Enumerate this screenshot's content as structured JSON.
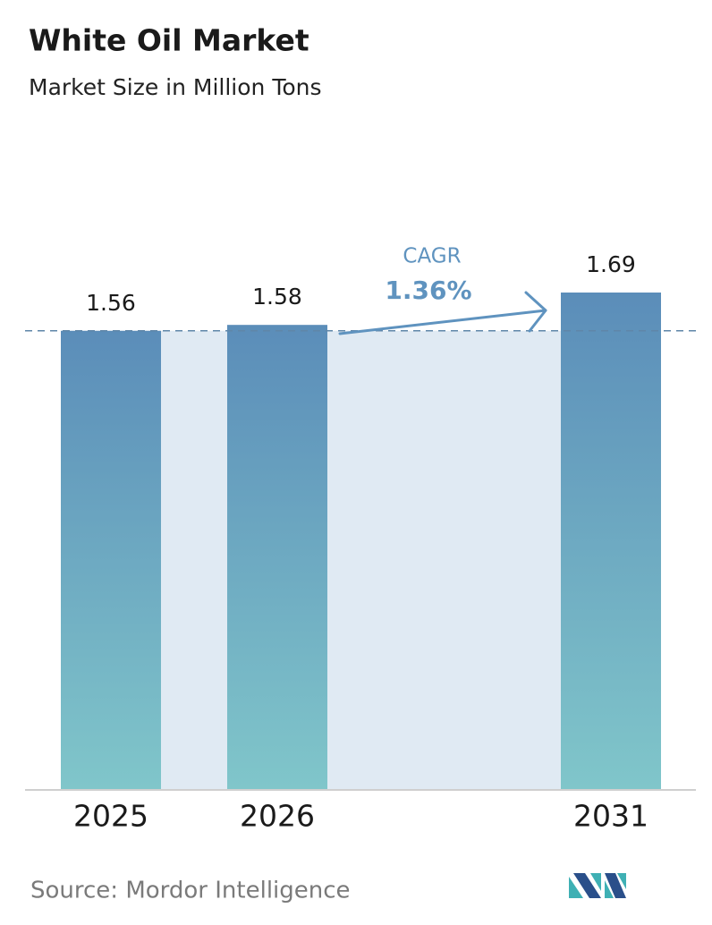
{
  "chart_data": {
    "type": "bar",
    "title": "White Oil Market",
    "subtitle": "Market Size in Million Tons",
    "categories": [
      "2025",
      "2026",
      "2031"
    ],
    "values": [
      1.56,
      1.58,
      1.69
    ],
    "color": "#5b8db9",
    "annotations": [
      "CAGR",
      "1.36%"
    ],
    "source": "Source: Mordor Intelligence"
  }
}
